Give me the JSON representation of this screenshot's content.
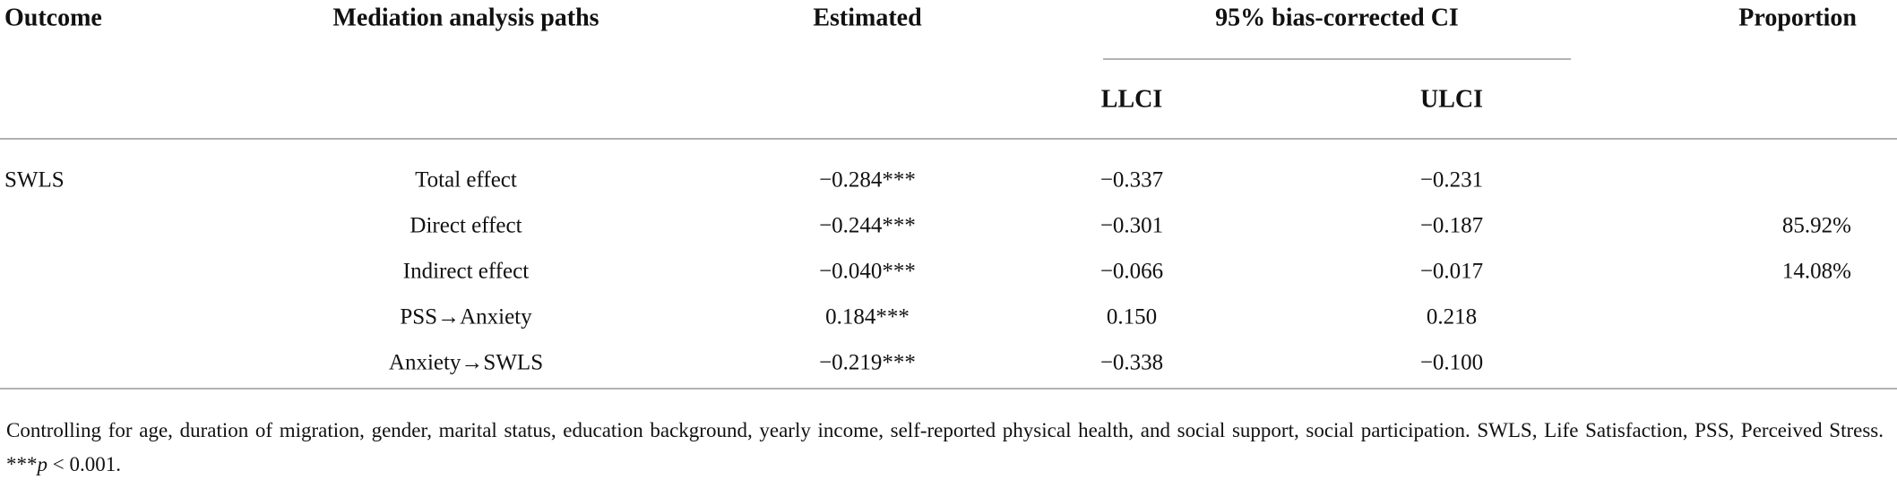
{
  "table": {
    "headers": {
      "outcome": "Outcome",
      "paths": "Mediation analysis paths",
      "estimated": "Estimated",
      "ci": "95% bias-corrected CI",
      "proportion": "Proportion"
    },
    "subheaders": {
      "llci": "LLCI",
      "ulci": "ULCI"
    },
    "rows": [
      {
        "outcome": "SWLS",
        "path": "Total effect",
        "estimated": "−0.284***",
        "llci": "−0.337",
        "ulci": "−0.231"
      },
      {
        "path": "Direct effect",
        "estimated": "−0.244***",
        "llci": "−0.301",
        "ulci": "−0.187",
        "proportion": "85.92%"
      },
      {
        "path": "Indirect effect",
        "estimated": "−0.040***",
        "llci": "−0.066",
        "ulci": "−0.017",
        "proportion": "14.08%"
      },
      {
        "path": "PSS→Anxiety",
        "estimated": "0.184***",
        "llci": "0.150",
        "ulci": "0.218"
      },
      {
        "path": "Anxiety→SWLS",
        "estimated": "−0.219***",
        "llci": "−0.338",
        "ulci": "−0.100"
      }
    ]
  },
  "note": {
    "text": "Controlling for age, duration of migration, gender, marital status, education background, yearly income, self-reported physical health, and social support, social participation. SWLS, Life Satisfaction, PSS, Perceived Stress. ***",
    "italic": "p",
    "tail": " < 0.001."
  }
}
